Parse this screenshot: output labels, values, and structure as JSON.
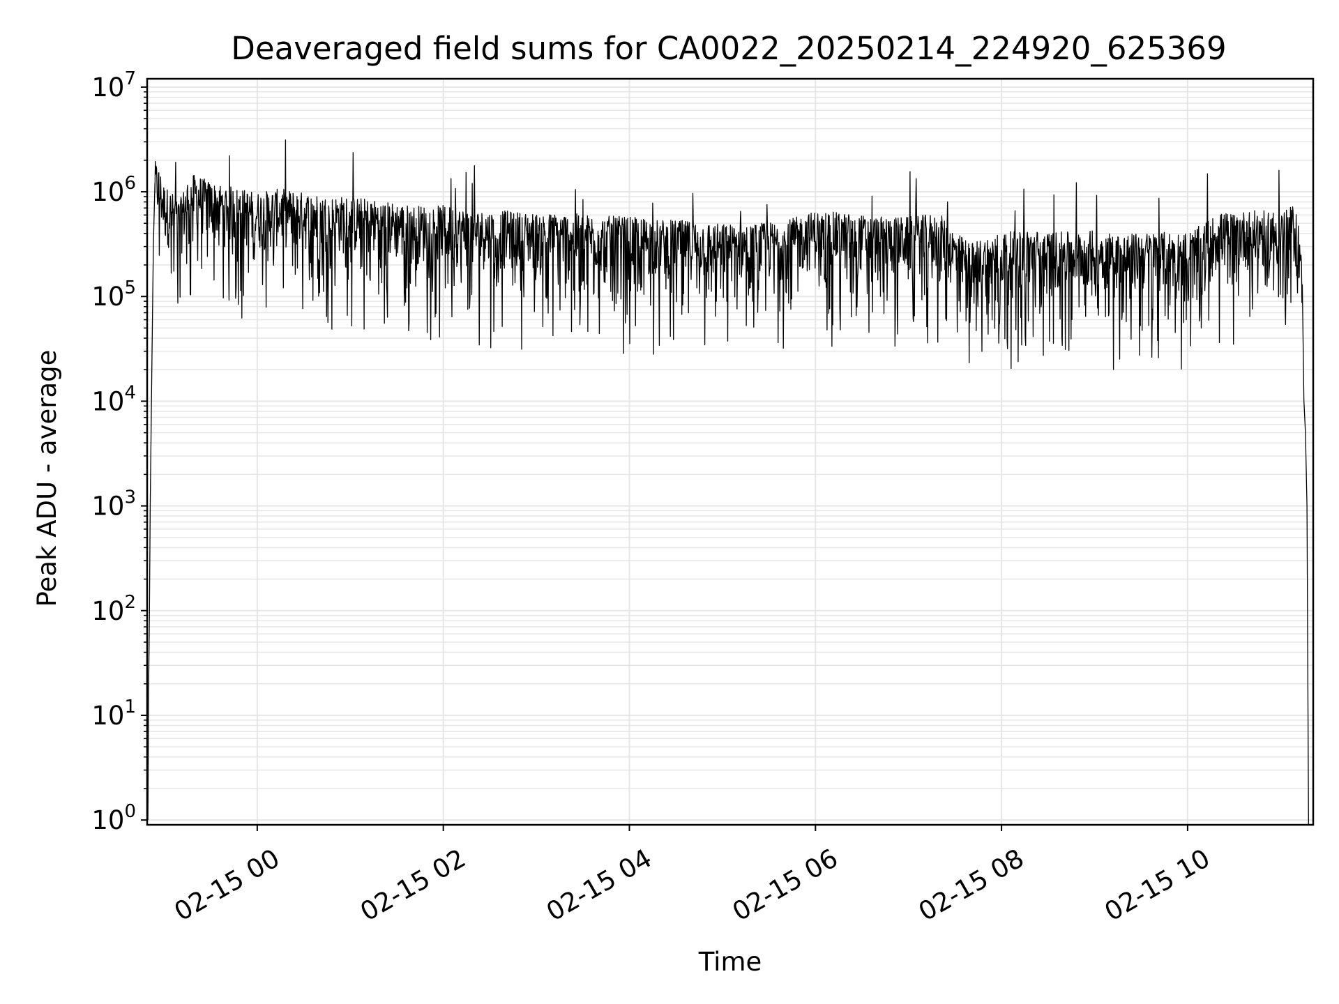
{
  "chart_data": {
    "type": "line",
    "title": "Deaveraged field sums for CA0022_20250214_224920_625369",
    "xlabel": "Time",
    "ylabel": "Peak ADU - average",
    "x_scale": "time",
    "y_scale": "log",
    "xlim": [
      "2025-02-14T22:49:00",
      "2025-02-15T11:21:00"
    ],
    "ylim": [
      0.9,
      12000000
    ],
    "grid": true,
    "line_color": "#000000",
    "grid_color": "#e6e6e6",
    "x_ticks": [
      {
        "value": "2025-02-15T00:00:00",
        "label": "02-15 00"
      },
      {
        "value": "2025-02-15T02:00:00",
        "label": "02-15 02"
      },
      {
        "value": "2025-02-15T04:00:00",
        "label": "02-15 04"
      },
      {
        "value": "2025-02-15T06:00:00",
        "label": "02-15 06"
      },
      {
        "value": "2025-02-15T08:00:00",
        "label": "02-15 08"
      },
      {
        "value": "2025-02-15T10:00:00",
        "label": "02-15 10"
      }
    ],
    "y_ticks": [
      {
        "value": 1,
        "base": "10",
        "exp": "0"
      },
      {
        "value": 10,
        "base": "10",
        "exp": "1"
      },
      {
        "value": 100,
        "base": "10",
        "exp": "2"
      },
      {
        "value": 1000,
        "base": "10",
        "exp": "3"
      },
      {
        "value": 10000,
        "base": "10",
        "exp": "4"
      },
      {
        "value": 100000,
        "base": "10",
        "exp": "5"
      },
      {
        "value": 1000000,
        "base": "10",
        "exp": "6"
      },
      {
        "value": 10000000,
        "base": "10",
        "exp": "7"
      }
    ],
    "series": [
      {
        "x": [
          "2025-02-14T22:49:30",
          "2025-02-14T22:50:00",
          "2025-02-14T22:50:30",
          "2025-02-14T22:51:00",
          "2025-02-14T22:52:00",
          "2025-02-14T22:53:00",
          "2025-02-14T22:54:00",
          "2025-02-14T22:56:00",
          "2025-02-14T22:58:00",
          "2025-02-14T23:00:00",
          "2025-02-14T23:05:00",
          "2025-02-14T23:10:00",
          "2025-02-14T23:15:00",
          "2025-02-14T23:20:00",
          "2025-02-14T23:30:00",
          "2025-02-14T23:40:00",
          "2025-02-14T23:50:00",
          "2025-02-15T00:00:00",
          "2025-02-15T00:15:00",
          "2025-02-15T00:30:00",
          "2025-02-15T00:45:00",
          "2025-02-15T01:00:00",
          "2025-02-15T01:20:00",
          "2025-02-15T01:40:00",
          "2025-02-15T02:00:00",
          "2025-02-15T02:20:00",
          "2025-02-15T02:40:00",
          "2025-02-15T03:00:00",
          "2025-02-15T03:20:00",
          "2025-02-15T03:40:00",
          "2025-02-15T04:00:00",
          "2025-02-15T04:20:00",
          "2025-02-15T04:40:00",
          "2025-02-15T05:00:00",
          "2025-02-15T05:20:00",
          "2025-02-15T05:40:00",
          "2025-02-15T06:00:00",
          "2025-02-15T06:20:00",
          "2025-02-15T06:40:00",
          "2025-02-15T07:00:00",
          "2025-02-15T07:20:00",
          "2025-02-15T07:30:00",
          "2025-02-15T07:40:00",
          "2025-02-15T08:00:00",
          "2025-02-15T08:20:00",
          "2025-02-15T08:40:00",
          "2025-02-15T09:00:00",
          "2025-02-15T09:20:00",
          "2025-02-15T09:40:00",
          "2025-02-15T10:00:00",
          "2025-02-15T10:10:00",
          "2025-02-15T10:20:00",
          "2025-02-15T10:40:00",
          "2025-02-15T11:00:00",
          "2025-02-15T11:05:00",
          "2025-02-15T11:08:00",
          "2025-02-15T11:10:00",
          "2025-02-15T11:12:00",
          "2025-02-15T11:14:00",
          "2025-02-15T11:15:00",
          "2025-02-15T11:16:00",
          "2025-02-15T11:17:00",
          "2025-02-15T11:18:00"
        ],
        "y": [
          1,
          20,
          100,
          1000,
          20000,
          300000,
          1200000,
          1100000,
          900000,
          700000,
          600000,
          500000,
          800000,
          900000,
          750000,
          700000,
          650000,
          600000,
          650000,
          600000,
          550000,
          550000,
          500000,
          450000,
          450000,
          400000,
          400000,
          380000,
          380000,
          360000,
          350000,
          330000,
          320000,
          300000,
          300000,
          320000,
          400000,
          380000,
          350000,
          350000,
          380000,
          250000,
          200000,
          250000,
          260000,
          250000,
          260000,
          240000,
          250000,
          250000,
          300000,
          380000,
          400000,
          400000,
          420000,
          450000,
          400000,
          300000,
          100000,
          10000,
          5000,
          1000,
          1
        ]
      }
    ],
    "noise": {
      "min_factor": 0.08,
      "max_factor": 4.0,
      "spike_max": 5500000
    }
  }
}
